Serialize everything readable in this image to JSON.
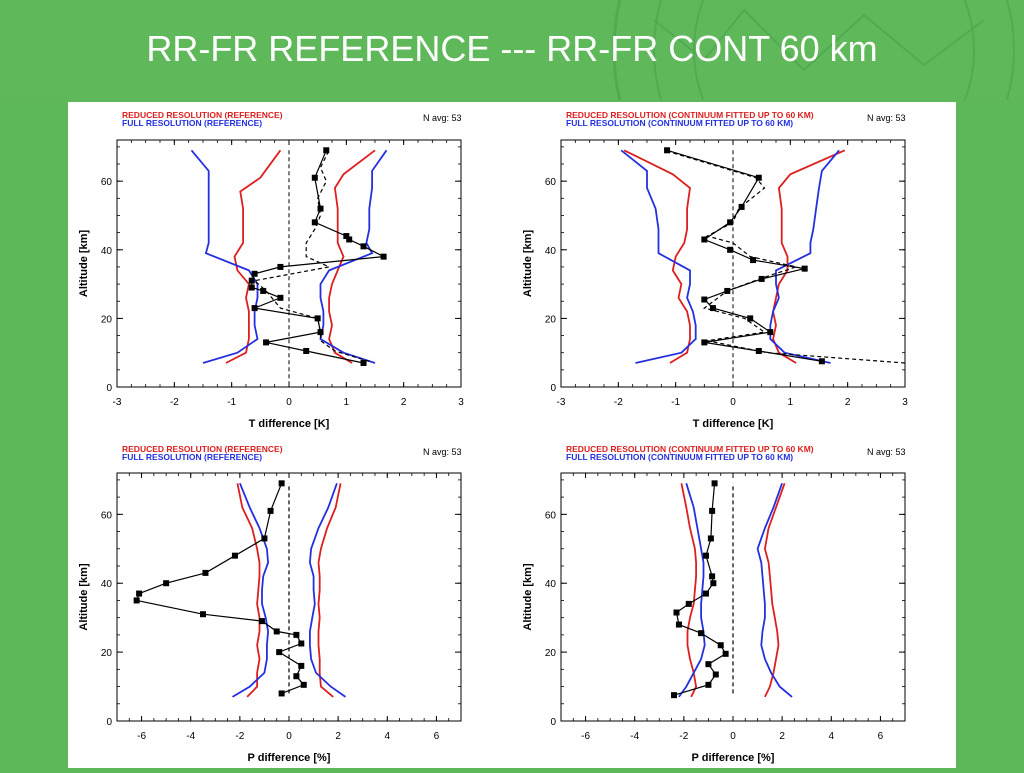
{
  "title": "RR-FR  REFERENCE --- RR-FR CONT 60 km",
  "colors": {
    "red": "#dd1f1f",
    "blue": "#2430e0",
    "black": "#000000",
    "header_green": "#5fb95b"
  },
  "chart_data": [
    {
      "type": "line",
      "legend_red": "REDUCED RESOLUTION (REFERENCE)",
      "legend_blue": "FULL RESOLUTION (REFERENCE)",
      "navg": "N avg: 53",
      "xlabel": "T difference [K]",
      "ylabel": "Altitude [km]",
      "xlim": [
        -3,
        3
      ],
      "ylim": [
        0,
        72
      ],
      "xticks": [
        -3,
        -2,
        -1,
        0,
        1,
        2,
        3
      ],
      "yticks": [
        0,
        20,
        40,
        60
      ],
      "series": [
        {
          "color": "red",
          "style": "solid",
          "x": [
            -1.1,
            -0.75,
            -0.7,
            -0.7,
            -0.7,
            -0.75,
            -0.7,
            -0.9,
            -0.95,
            -0.8,
            -0.8,
            -0.8,
            -0.85,
            -0.5,
            -0.15
          ],
          "y": [
            7,
            10,
            14,
            18,
            22,
            26,
            30,
            34,
            38,
            42,
            46,
            52,
            57,
            61,
            69
          ]
        },
        {
          "color": "blue",
          "style": "solid",
          "x": [
            -1.5,
            -0.9,
            -0.55,
            -0.6,
            -0.6,
            -0.55,
            -0.55,
            -0.7,
            -1.45,
            -1.4,
            -1.4,
            -1.4,
            -1.4,
            -1.4,
            -1.7
          ],
          "y": [
            7,
            10,
            14,
            18,
            22,
            26,
            30,
            34,
            39,
            42,
            46,
            52,
            58,
            63,
            69
          ]
        },
        {
          "color": "red",
          "style": "solid",
          "x": [
            1.1,
            0.8,
            0.7,
            0.75,
            0.7,
            0.7,
            0.75,
            0.85,
            0.95,
            0.85,
            0.85,
            0.85,
            0.8,
            0.95,
            1.5
          ],
          "y": [
            7,
            10,
            14,
            18,
            22,
            26,
            30,
            34,
            38,
            42,
            46,
            52,
            58,
            62,
            69
          ]
        },
        {
          "color": "blue",
          "style": "solid",
          "x": [
            1.5,
            0.95,
            0.55,
            0.6,
            0.6,
            0.55,
            0.55,
            0.7,
            1.45,
            1.35,
            1.4,
            1.4,
            1.45,
            1.45,
            1.7
          ],
          "y": [
            7,
            10,
            14,
            18,
            22,
            26,
            30,
            34,
            39,
            42,
            46,
            52,
            58,
            63,
            69
          ]
        },
        {
          "color": "black",
          "style": "dashed",
          "x": [
            1.4,
            0.8,
            0.55,
            0.55,
            0.5,
            -0.15,
            -0.4,
            -0.6,
            0.7,
            0.3,
            0.3,
            0.45,
            0.55,
            0.5,
            0.65,
            0.55,
            0.7
          ],
          "y": [
            7.5,
            10.5,
            13.5,
            16,
            20,
            23,
            28,
            31,
            35,
            38,
            42,
            46,
            50,
            55,
            60,
            64,
            69
          ]
        },
        {
          "color": "black",
          "style": "solid",
          "markers": true,
          "x": [
            1.3,
            0.3,
            -0.4,
            0.55,
            0.5,
            -0.6,
            -0.15,
            -0.45,
            -0.65,
            -0.65,
            -0.6,
            -0.15,
            1.65,
            1.3,
            1.05,
            1.0,
            0.45,
            0.55,
            0.45,
            0.65
          ],
          "y": [
            7,
            10.5,
            13,
            16,
            20,
            23,
            26,
            28,
            29,
            31,
            33,
            35,
            38,
            41,
            43,
            44,
            48,
            52,
            61,
            69
          ]
        }
      ]
    },
    {
      "type": "line",
      "legend_red": "REDUCED RESOLUTION (CONTINUUM FITTED UP TO 60 KM)",
      "legend_blue": "FULL RESOLUTION (CONTINUUM FITTED UP TO 60 KM)",
      "navg": "N avg: 53",
      "xlabel": "T difference [K]",
      "ylabel": "Altitude [km]",
      "xlim": [
        -3,
        3
      ],
      "ylim": [
        0,
        72
      ],
      "xticks": [
        -3,
        -2,
        -1,
        0,
        1,
        2,
        3
      ],
      "yticks": [
        0,
        20,
        40,
        60
      ],
      "series": [
        {
          "color": "red",
          "style": "solid",
          "x": [
            -1.1,
            -0.8,
            -0.75,
            -0.75,
            -0.8,
            -0.95,
            -0.9,
            -1.05,
            -1.0,
            -0.85,
            -0.8,
            -0.8,
            -0.75,
            -1.05,
            -1.9
          ],
          "y": [
            7,
            10,
            14,
            18,
            22,
            26,
            30,
            34,
            38,
            42,
            46,
            52,
            58,
            62,
            69
          ]
        },
        {
          "color": "blue",
          "style": "solid",
          "x": [
            -1.7,
            -0.9,
            -0.65,
            -0.65,
            -0.7,
            -0.8,
            -0.75,
            -0.75,
            -1.3,
            -1.3,
            -1.3,
            -1.35,
            -1.5,
            -1.5,
            -1.95
          ],
          "y": [
            7,
            10,
            14,
            18,
            22,
            26,
            30,
            34,
            39,
            42,
            46,
            52,
            58,
            63,
            69
          ]
        },
        {
          "color": "red",
          "style": "solid",
          "x": [
            1.1,
            0.8,
            0.7,
            0.75,
            0.7,
            0.75,
            0.8,
            0.95,
            0.95,
            0.85,
            0.85,
            0.85,
            0.8,
            1.0,
            1.95
          ],
          "y": [
            7,
            10,
            14,
            18,
            22,
            26,
            30,
            34,
            38,
            42,
            46,
            52,
            58,
            62,
            69
          ]
        },
        {
          "color": "blue",
          "style": "solid",
          "x": [
            1.7,
            0.9,
            0.65,
            0.65,
            0.7,
            0.8,
            0.75,
            0.75,
            1.35,
            1.35,
            1.4,
            1.45,
            1.5,
            1.55,
            1.85
          ],
          "y": [
            7,
            10,
            14,
            18,
            22,
            26,
            30,
            34,
            39,
            42,
            46,
            52,
            58,
            63,
            69
          ]
        },
        {
          "color": "black",
          "style": "dashed",
          "x": [
            3.0,
            0.6,
            -0.45,
            0.55,
            0.2,
            -0.5,
            -0.1,
            0.55,
            1.1,
            0.3,
            0.0,
            -0.45,
            0.0,
            0.1,
            0.55,
            0.4,
            -1.2
          ],
          "y": [
            7,
            10,
            13.5,
            16,
            20,
            23,
            28,
            32,
            35,
            38,
            42,
            44,
            48,
            52,
            58,
            61,
            69
          ]
        },
        {
          "color": "black",
          "style": "solid",
          "markers": true,
          "x": [
            1.55,
            0.45,
            -0.5,
            0.65,
            0.3,
            -0.35,
            -0.5,
            -0.1,
            0.5,
            1.25,
            0.35,
            -0.05,
            -0.5,
            -0.05,
            0.15,
            0.45,
            -1.15
          ],
          "y": [
            7.5,
            10.5,
            13,
            16,
            20,
            23,
            25.5,
            28,
            31.5,
            34.5,
            37,
            40,
            43,
            48,
            52.5,
            61,
            69
          ]
        }
      ]
    },
    {
      "type": "line",
      "legend_red": "REDUCED RESOLUTION (REFERENCE)",
      "legend_blue": "FULL RESOLUTION (REFERENCE)",
      "navg": "N avg: 53",
      "xlabel": "P difference [%]",
      "ylabel": "Altitude [km]",
      "xlim": [
        -7,
        7
      ],
      "ylim": [
        0,
        72
      ],
      "xticks": [
        -6,
        -4,
        -2,
        0,
        2,
        4,
        6
      ],
      "yticks": [
        0,
        20,
        40,
        60
      ],
      "series": [
        {
          "color": "red",
          "style": "solid",
          "x": [
            -1.7,
            -1.3,
            -1.3,
            -1.2,
            -1.3,
            -1.2,
            -1.2,
            -1.3,
            -1.25,
            -1.2,
            -1.2,
            -1.3,
            -1.5,
            -1.9,
            -2.1
          ],
          "y": [
            7,
            10,
            14,
            18,
            22,
            26,
            30,
            34,
            38,
            42,
            46,
            50,
            56,
            62,
            69
          ]
        },
        {
          "color": "blue",
          "style": "solid",
          "x": [
            -2.3,
            -1.6,
            -1.0,
            -0.9,
            -0.9,
            -0.85,
            -0.95,
            -1.1,
            -1.1,
            -1.05,
            -0.85,
            -0.9,
            -1.2,
            -1.6,
            -2.0
          ],
          "y": [
            7,
            10,
            14,
            18,
            22,
            26,
            30,
            34,
            38,
            42,
            46,
            50,
            56,
            62,
            69
          ]
        },
        {
          "color": "red",
          "style": "solid",
          "x": [
            1.8,
            1.3,
            1.25,
            1.25,
            1.2,
            1.2,
            1.25,
            1.2,
            1.25,
            1.25,
            1.2,
            1.3,
            1.55,
            1.9,
            2.1
          ],
          "y": [
            7,
            10,
            14,
            18,
            22,
            26,
            30,
            34,
            38,
            42,
            46,
            50,
            56,
            62,
            69
          ]
        },
        {
          "color": "blue",
          "style": "solid",
          "x": [
            2.3,
            1.7,
            1.1,
            0.9,
            0.85,
            0.85,
            0.95,
            1.05,
            1.0,
            1.0,
            0.85,
            0.9,
            1.2,
            1.6,
            1.95
          ],
          "y": [
            7,
            10,
            14,
            18,
            22,
            26,
            30,
            34,
            38,
            42,
            46,
            50,
            56,
            62,
            69
          ]
        },
        {
          "color": "black",
          "style": "dashed",
          "x": [
            0,
            0
          ],
          "y": [
            8,
            69
          ]
        },
        {
          "color": "black",
          "style": "solid",
          "markers": true,
          "x": [
            -0.3,
            0.6,
            0.3,
            0.5,
            -0.4,
            0.5,
            0.3,
            -0.5,
            -1.1,
            -3.5,
            -6.2,
            -6.1,
            -5.0,
            -3.4,
            -2.2,
            -1.0,
            -0.75,
            -0.3
          ],
          "y": [
            8,
            10.5,
            13,
            16,
            20,
            22.5,
            25,
            26,
            29,
            31,
            35,
            37,
            40,
            43,
            48,
            53,
            61,
            69
          ]
        }
      ]
    },
    {
      "type": "line",
      "legend_red": "REDUCED RESOLUTION (CONTINUUM FITTED UP TO 60 KM)",
      "legend_blue": "FULL RESOLUTION (CONTINUUM FITTED UP TO 60 KM)",
      "navg": "N avg: 53",
      "xlabel": "P difference [%]",
      "ylabel": "Altitude [km]",
      "xlim": [
        -7,
        7
      ],
      "ylim": [
        0,
        72
      ],
      "xticks": [
        -6,
        -4,
        -2,
        0,
        2,
        4,
        6
      ],
      "yticks": [
        0,
        20,
        40,
        60
      ],
      "series": [
        {
          "color": "red",
          "style": "solid",
          "x": [
            -1.7,
            -1.5,
            -1.6,
            -1.75,
            -1.85,
            -1.85,
            -1.75,
            -1.6,
            -1.55,
            -1.5,
            -1.5,
            -1.55,
            -1.75,
            -1.9,
            -2.1
          ],
          "y": [
            7,
            10,
            14,
            18,
            22,
            26,
            30,
            34,
            38,
            42,
            46,
            50,
            56,
            62,
            69
          ]
        },
        {
          "color": "blue",
          "style": "solid",
          "x": [
            -2.2,
            -1.9,
            -1.6,
            -1.3,
            -1.15,
            -1.2,
            -1.3,
            -1.3,
            -1.25,
            -1.2,
            -1.2,
            -1.3,
            -1.45,
            -1.6,
            -1.9
          ],
          "y": [
            7,
            10,
            14,
            18,
            22,
            26,
            30,
            34,
            38,
            42,
            46,
            50,
            56,
            62,
            69
          ]
        },
        {
          "color": "red",
          "style": "solid",
          "x": [
            1.3,
            1.5,
            1.65,
            1.75,
            1.85,
            1.8,
            1.7,
            1.6,
            1.55,
            1.5,
            1.45,
            1.3,
            1.45,
            1.75,
            2.1
          ],
          "y": [
            7,
            10,
            14,
            18,
            22,
            26,
            30,
            34,
            38,
            42,
            46,
            50,
            56,
            62,
            69
          ]
        },
        {
          "color": "blue",
          "style": "solid",
          "x": [
            2.4,
            1.9,
            1.55,
            1.3,
            1.15,
            1.2,
            1.3,
            1.3,
            1.25,
            1.2,
            1.15,
            1.0,
            1.3,
            1.65,
            2.0
          ],
          "y": [
            7,
            10,
            14,
            18,
            22,
            26,
            30,
            34,
            38,
            42,
            46,
            50,
            56,
            62,
            69
          ]
        },
        {
          "color": "black",
          "style": "dashed",
          "x": [
            0,
            0
          ],
          "y": [
            8,
            69
          ]
        },
        {
          "color": "black",
          "style": "solid",
          "markers": true,
          "x": [
            -2.4,
            -1.0,
            -0.7,
            -1.0,
            -0.3,
            -0.5,
            -1.3,
            -2.2,
            -2.3,
            -1.8,
            -1.1,
            -0.8,
            -0.85,
            -1.1,
            -0.9,
            -0.85,
            -0.75
          ],
          "y": [
            7.5,
            10.5,
            13.5,
            16.5,
            19.5,
            22,
            25.5,
            28,
            31.5,
            34,
            37,
            40,
            42,
            48,
            53,
            61,
            69
          ]
        }
      ]
    }
  ]
}
